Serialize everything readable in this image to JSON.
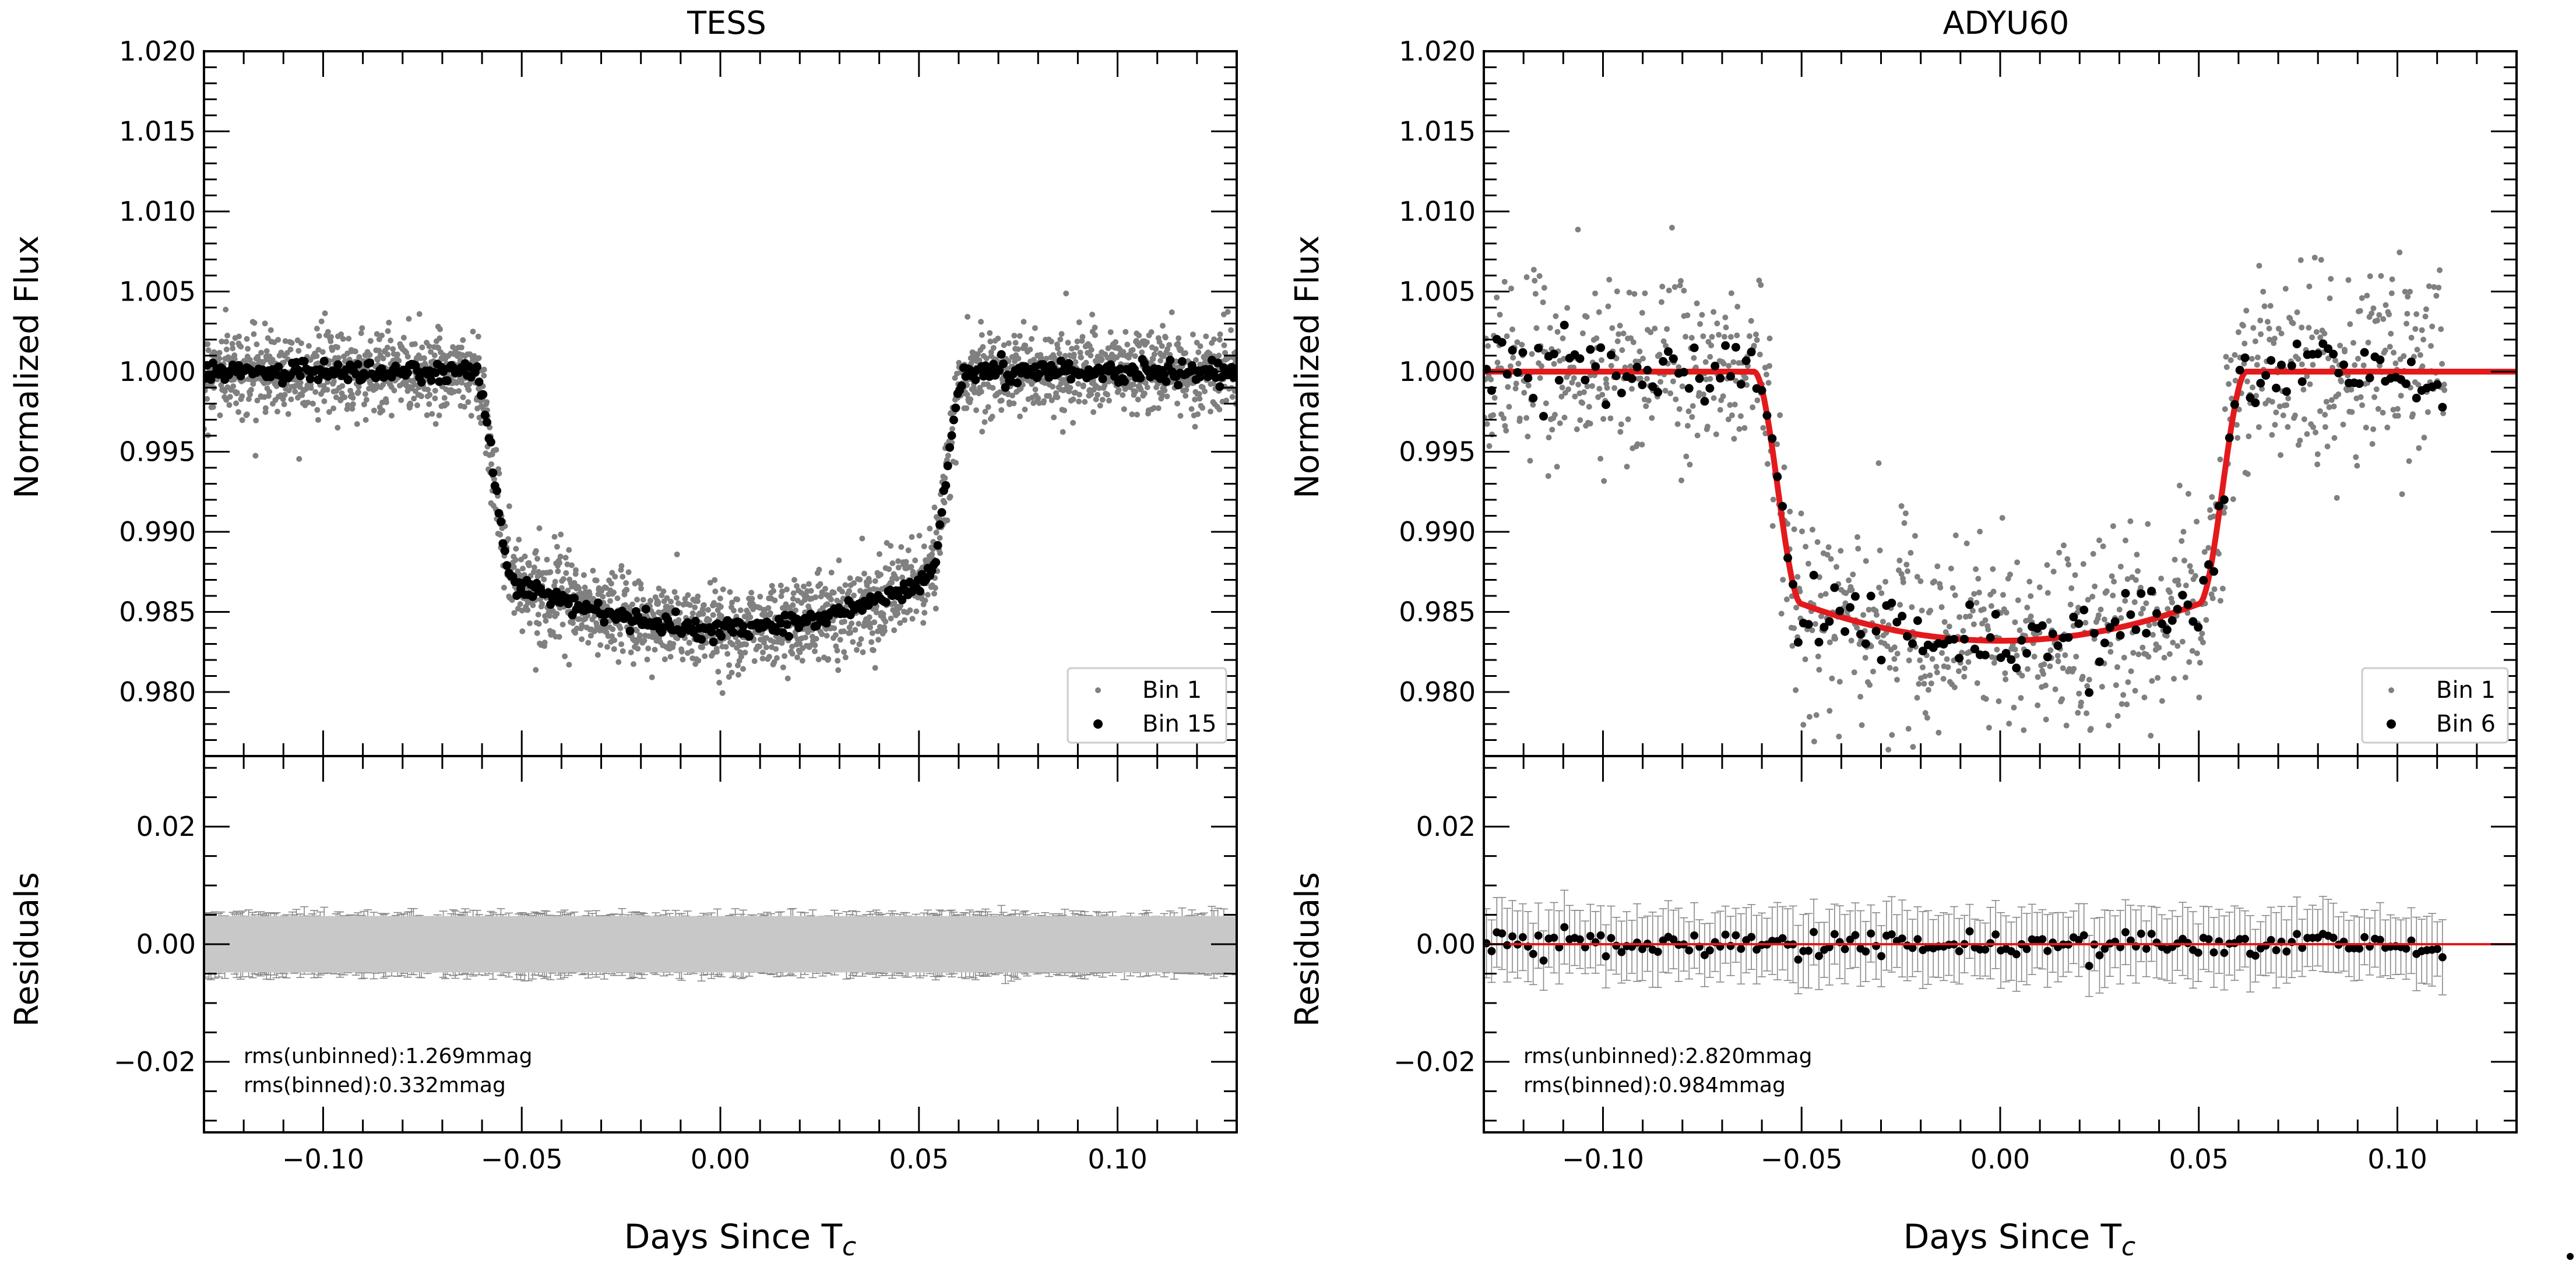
{
  "figure": {
    "xlabel": "Days Since T",
    "xlabel_sub": "c"
  },
  "chart_data": [
    {
      "type": "scatter",
      "title": "TESS",
      "xlabel": "Days Since T_c",
      "ylabel": "Normalized Flux",
      "xlim": [
        -0.13,
        0.13
      ],
      "ylim": [
        0.976,
        1.02
      ],
      "x_ticks": [
        -0.1,
        -0.05,
        0.0,
        0.05,
        0.1
      ],
      "x_tick_labels": [
        "−0.10",
        "−0.05",
        "0.00",
        "0.05",
        "0.10"
      ],
      "y_ticks": [
        0.98,
        0.985,
        0.99,
        0.995,
        1.0,
        1.005,
        1.01,
        1.015,
        1.02
      ],
      "y_tick_labels": [
        "0.980",
        "0.985",
        "0.990",
        "0.995",
        "1.000",
        "1.005",
        "1.010",
        "1.015",
        "1.020"
      ],
      "transit": {
        "t1": -0.062,
        "t2": -0.052,
        "t3": 0.052,
        "t4": 0.062,
        "depth_center": 0.984,
        "depth_edge": 0.987
      },
      "series": [
        {
          "name": "Bin 1",
          "color": "#808080",
          "scatter_sigma": 0.0013,
          "n_points": 2600
        },
        {
          "name": "Bin 15",
          "color": "#000000",
          "scatter_sigma": 0.00033,
          "n_points": 520
        }
      ],
      "model_line": null,
      "legend": [
        "Bin 1",
        "Bin 15"
      ],
      "legend_location": "lower-right",
      "residuals": {
        "ylabel": "Residuals",
        "ylim": [
          -0.032,
          0.032
        ],
        "y_ticks": [
          -0.02,
          0.0,
          0.02
        ],
        "y_tick_labels": [
          "−0.02",
          "0.00",
          "0.02"
        ],
        "errorbar": 0.0048,
        "rms_unbinned": "rms(unbinned):1.269mmag",
        "rms_binned": "rms(binned):0.332mmag"
      }
    },
    {
      "type": "scatter",
      "title": "ADYU60",
      "xlabel": "Days Since T_c",
      "ylabel": "Normalized Flux",
      "xlim": [
        -0.13,
        0.13
      ],
      "ylim": [
        0.976,
        1.02
      ],
      "x_ticks": [
        -0.1,
        -0.05,
        0.0,
        0.05,
        0.1
      ],
      "x_tick_labels": [
        "−0.10",
        "−0.05",
        "0.00",
        "0.05",
        "0.10"
      ],
      "y_ticks": [
        0.98,
        0.985,
        0.99,
        0.995,
        1.0,
        1.005,
        1.01,
        1.015,
        1.02
      ],
      "y_tick_labels": [
        "0.980",
        "0.985",
        "0.990",
        "0.995",
        "1.000",
        "1.005",
        "1.010",
        "1.015",
        "1.020"
      ],
      "transit": {
        "t1": -0.062,
        "t2": -0.05,
        "t3": 0.05,
        "t4": 0.062,
        "depth_center": 0.9832,
        "depth_edge": 0.9855
      },
      "data_range": [
        -0.13,
        0.112
      ],
      "series": [
        {
          "name": "Bin 1",
          "color": "#808080",
          "scatter_sigma": 0.0029,
          "n_points": 1100
        },
        {
          "name": "Bin 6",
          "color": "#000000",
          "scatter_sigma": 0.0011,
          "n_points": 185
        }
      ],
      "model_line": {
        "name": "model",
        "color": "#e31a1c"
      },
      "legend": [
        "Bin 1",
        "Bin 6"
      ],
      "legend_location": "lower-right",
      "residuals": {
        "ylabel": "Residuals",
        "ylim": [
          -0.032,
          0.032
        ],
        "y_ticks": [
          -0.02,
          0.0,
          0.02
        ],
        "y_tick_labels": [
          "−0.02",
          "0.00",
          "0.02"
        ],
        "errorbar": 0.0055,
        "rms_unbinned": "rms(unbinned):2.820mmag",
        "rms_binned": "rms(binned):0.984mmag"
      }
    }
  ]
}
